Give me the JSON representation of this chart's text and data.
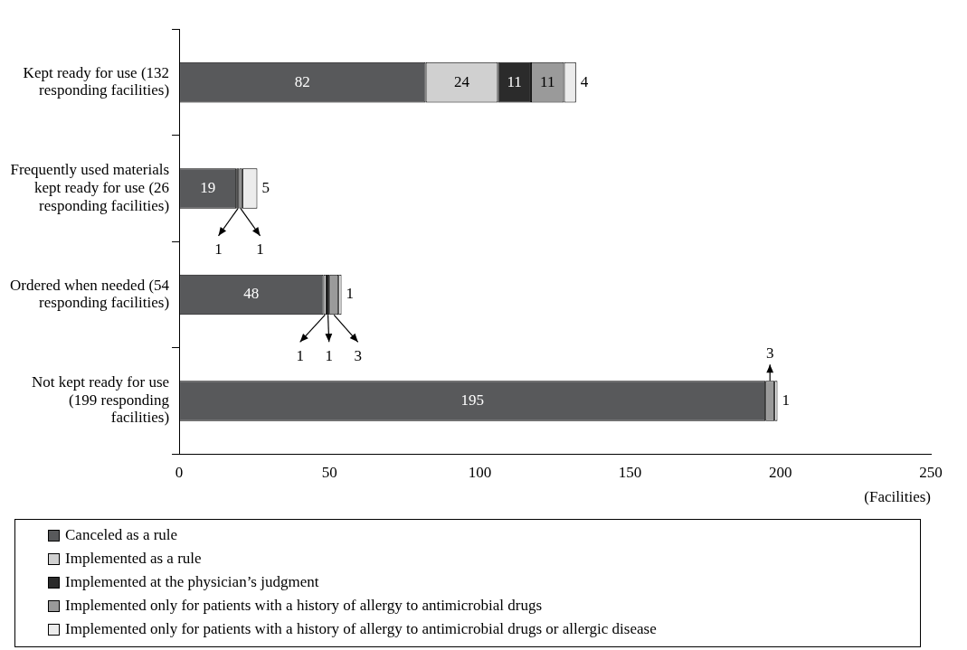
{
  "chart_data": {
    "type": "bar",
    "orientation": "horizontal",
    "stacked": true,
    "xlabel": "(Facilities)",
    "categories": [
      "Kept ready for use (132 responding facilities)",
      "Frequently used materials kept ready for use (26 responding facilities)",
      "Ordered when needed (54 responding facilities)",
      "Not kept ready for use (199 responding facilities)"
    ],
    "series": [
      {
        "name": "Canceled as a rule",
        "color": "#58595b",
        "values": [
          82,
          19,
          48,
          195
        ]
      },
      {
        "name": "Implemented as a rule",
        "color": "#d0d0d0",
        "values": [
          24,
          null,
          1,
          null
        ]
      },
      {
        "name": "Implemented at the physician’s judgment",
        "color": "#2b2b2b",
        "values": [
          11,
          1,
          1,
          null
        ]
      },
      {
        "name": "Implemented only for patients with a history of allergy to antimicrobial drugs",
        "color": "#9a9a9a",
        "values": [
          11,
          1,
          3,
          3
        ]
      },
      {
        "name": "Implemented only for patients with a history of allergy to antimicrobial drugs or allergic disease",
        "color": "#ececec",
        "values": [
          4,
          5,
          1,
          1
        ]
      }
    ],
    "xlim": [
      0,
      250
    ],
    "xticks": [
      0,
      50,
      100,
      150,
      200,
      250
    ],
    "grid": false,
    "legend": "bottom",
    "data_labels": true
  }
}
